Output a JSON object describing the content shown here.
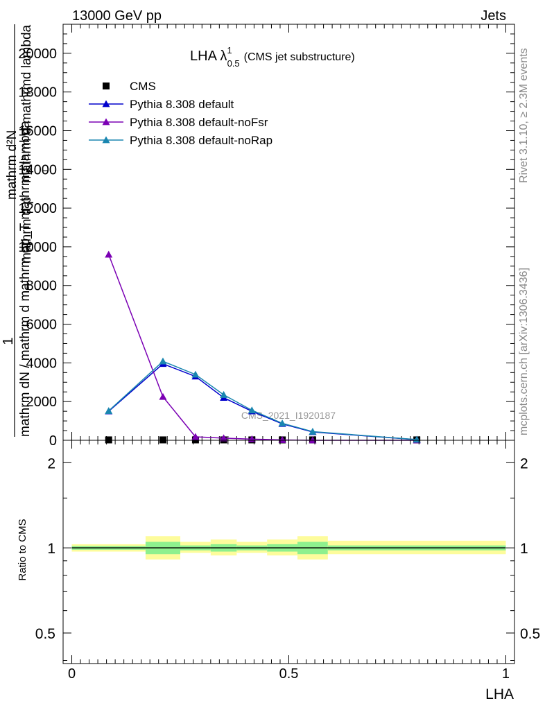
{
  "header": {
    "left": "13000 GeV pp",
    "right": "Jets",
    "side_rivet": "Rivet 3.1.10, ≥ 2.3M events",
    "side_mcplots": "mcplots.cern.ch [arXiv:1306.3436]"
  },
  "chart_data": [
    {
      "type": "line",
      "title_main": "LHA λ",
      "title_sup": "1",
      "title_sub": "0.5",
      "title_rest": "(CMS jet substructure)",
      "watermark": "CMS_2021_I1920187",
      "ylabel_num": "1",
      "ylabel_den_top": "mathrm d²N",
      "ylabel_den_mid": "mathrm d p",
      "ylabel_den_T": "T",
      "ylabel_den_bot": "mathrm d mathrmd lambda",
      "ylabel_full": "mathrm dN / mathrm d mathrm dp_T mathrmd lambda",
      "ylim": [
        0,
        21500
      ],
      "yticks": [
        0,
        2000,
        4000,
        6000,
        8000,
        10000,
        12000,
        14000,
        16000,
        18000,
        20000
      ],
      "ytick_labels": [
        "0",
        "2000",
        "4000",
        "6000",
        "8000",
        "10000",
        "12000",
        "14000",
        "16000",
        "18000",
        "20000"
      ],
      "legend_position": "top-left",
      "series": [
        {
          "name": "CMS",
          "style": "square",
          "color": "#000000",
          "x": [
            0.085,
            0.21,
            0.285,
            0.35,
            0.415,
            0.485,
            0.555,
            0.795
          ],
          "y": [
            20,
            20,
            20,
            20,
            20,
            20,
            20,
            20
          ]
        },
        {
          "name": "Pythia 8.308 default",
          "style": "triangle",
          "color": "#0000cc",
          "x": [
            0.085,
            0.21,
            0.285,
            0.35,
            0.415,
            0.485,
            0.555,
            0.795
          ],
          "y": [
            1500,
            3950,
            3300,
            2200,
            1500,
            850,
            430,
            30
          ]
        },
        {
          "name": "Pythia 8.308 default-noFsr",
          "style": "triangle",
          "color": "#7b00b4",
          "x": [
            0.085,
            0.21,
            0.285,
            0.35,
            0.415,
            0.485,
            0.555,
            0.795
          ],
          "y": [
            9600,
            2250,
            180,
            110,
            60,
            20,
            0,
            0
          ]
        },
        {
          "name": "Pythia 8.308 default-noRap",
          "style": "triangle",
          "color": "#1a86b0",
          "x": [
            0.085,
            0.21,
            0.285,
            0.35,
            0.415,
            0.485,
            0.555,
            0.795
          ],
          "y": [
            1520,
            4080,
            3400,
            2350,
            1550,
            880,
            450,
            35
          ]
        }
      ]
    },
    {
      "type": "line",
      "ylabel": "Ratio to CMS",
      "xlabel": "LHA",
      "xlim": [
        -0.02,
        1.02
      ],
      "xticks": [
        0,
        0.5,
        1
      ],
      "xtick_labels": [
        "0",
        "0.5",
        "1"
      ],
      "ylim": [
        0.39,
        2.4
      ],
      "yscale": "log",
      "yticks": [
        0.5,
        1,
        2
      ],
      "ytick_labels": [
        "0.5",
        "1",
        "2"
      ],
      "bands": [
        {
          "xlo": 0.0,
          "xhi": 0.17,
          "y_lo": 0.97,
          "y_hi": 1.03,
          "y_lo2": 0.985,
          "y_hi2": 1.015
        },
        {
          "xlo": 0.17,
          "xhi": 0.25,
          "y_lo": 0.91,
          "y_hi": 1.1,
          "y_lo2": 0.95,
          "y_hi2": 1.05
        },
        {
          "xlo": 0.25,
          "xhi": 0.32,
          "y_lo": 0.96,
          "y_hi": 1.05,
          "y_lo2": 0.98,
          "y_hi2": 1.02
        },
        {
          "xlo": 0.32,
          "xhi": 0.38,
          "y_lo": 0.94,
          "y_hi": 1.07,
          "y_lo2": 0.97,
          "y_hi2": 1.03
        },
        {
          "xlo": 0.38,
          "xhi": 0.45,
          "y_lo": 0.96,
          "y_hi": 1.05,
          "y_lo2": 0.98,
          "y_hi2": 1.02
        },
        {
          "xlo": 0.45,
          "xhi": 0.52,
          "y_lo": 0.94,
          "y_hi": 1.07,
          "y_lo2": 0.97,
          "y_hi2": 1.03
        },
        {
          "xlo": 0.52,
          "xhi": 0.59,
          "y_lo": 0.91,
          "y_hi": 1.1,
          "y_lo2": 0.95,
          "y_hi2": 1.05
        },
        {
          "xlo": 0.59,
          "xhi": 1.0,
          "y_lo": 0.95,
          "y_hi": 1.06,
          "y_lo2": 0.98,
          "y_hi2": 1.02
        }
      ],
      "band_colors": {
        "outer": "#fdfc9c",
        "inner": "#8ef08e"
      },
      "ref_line": 1
    }
  ]
}
